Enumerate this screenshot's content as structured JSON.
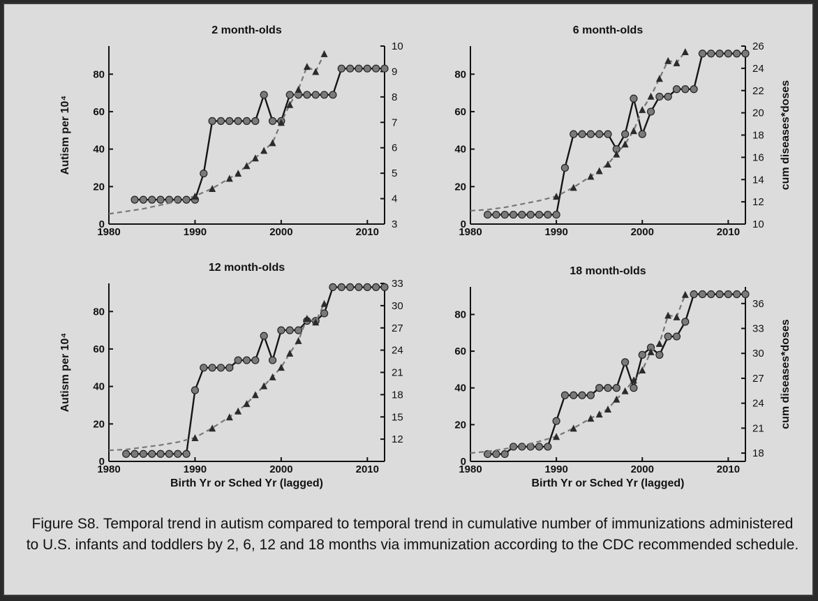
{
  "caption": "Figure S8. Temporal trend in autism compared to temporal trend in cumulative number of immunizations administered to U.S. infants and toddlers by 2, 6, 12 and 18 months via immunization according to the CDC recommended schedule.",
  "chart_data": [
    {
      "type": "line",
      "title": "2 month-olds",
      "xlabel": "",
      "ylabel": "Autism per 10⁴",
      "y2label": "",
      "xlim": [
        1980,
        2012
      ],
      "xticks": [
        1980,
        1990,
        2000,
        2010
      ],
      "ylim": [
        0,
        95
      ],
      "yticks": [
        0,
        20,
        40,
        60,
        80
      ],
      "y2lim": [
        3,
        10
      ],
      "y2ticks": [
        3,
        4,
        5,
        6,
        7,
        8,
        9,
        10
      ],
      "series": [
        {
          "role": "autism",
          "axis": "left",
          "style": "solid-circles",
          "color": "#7a7a7a",
          "x": [
            1983,
            1984,
            1985,
            1986,
            1987,
            1988,
            1989,
            1990,
            1991,
            1992,
            1993,
            1994,
            1995,
            1996,
            1997,
            1998,
            1999,
            2000,
            2001,
            2002,
            2003,
            2004,
            2005,
            2006,
            2007,
            2008,
            2009,
            2010,
            2011,
            2012
          ],
          "y": [
            13,
            13,
            13,
            13,
            13,
            13,
            13,
            13,
            27,
            55,
            55,
            55,
            55,
            55,
            55,
            69,
            55,
            55,
            69,
            69,
            69,
            69,
            69,
            69,
            83,
            83,
            83,
            83,
            83,
            83
          ]
        },
        {
          "role": "doses",
          "axis": "right",
          "style": "dashed-triangles",
          "color": "#777777",
          "x": [
            1980,
            1982,
            1984,
            1986,
            1988,
            1990,
            1992,
            1994,
            1995,
            1996,
            1997,
            1998,
            1999,
            2000,
            2001,
            2002,
            2003,
            2004,
            2005
          ],
          "y": [
            3.4,
            3.5,
            3.6,
            3.75,
            3.9,
            4.1,
            4.4,
            4.8,
            5.0,
            5.3,
            5.6,
            5.9,
            6.2,
            7.0,
            7.7,
            8.3,
            9.2,
            9.0,
            9.7
          ]
        }
      ]
    },
    {
      "type": "line",
      "title": "6 month-olds",
      "xlabel": "",
      "ylabel": "",
      "y2label": "cum diseases*doses",
      "xlim": [
        1980,
        2012
      ],
      "xticks": [
        1980,
        1990,
        2000,
        2010
      ],
      "ylim": [
        0,
        95
      ],
      "yticks": [
        0,
        20,
        40,
        60,
        80
      ],
      "y2lim": [
        10,
        26
      ],
      "y2ticks": [
        10,
        12,
        14,
        16,
        18,
        20,
        22,
        24,
        26
      ],
      "series": [
        {
          "role": "autism",
          "axis": "left",
          "style": "solid-circles",
          "color": "#7a7a7a",
          "x": [
            1982,
            1983,
            1984,
            1985,
            1986,
            1987,
            1988,
            1989,
            1990,
            1991,
            1992,
            1993,
            1994,
            1995,
            1996,
            1997,
            1998,
            1999,
            2000,
            2001,
            2002,
            2003,
            2004,
            2005,
            2006,
            2007,
            2008,
            2009,
            2010,
            2011,
            2012
          ],
          "y": [
            5,
            5,
            5,
            5,
            5,
            5,
            5,
            5,
            5,
            30,
            48,
            48,
            48,
            48,
            48,
            40,
            48,
            67,
            48,
            60,
            68,
            68,
            72,
            72,
            72,
            91,
            91,
            91,
            91,
            91,
            91
          ]
        },
        {
          "role": "doses",
          "axis": "right",
          "style": "dashed-triangles",
          "color": "#777777",
          "x": [
            1980,
            1982,
            1984,
            1986,
            1988,
            1990,
            1992,
            1994,
            1995,
            1996,
            1997,
            1998,
            1999,
            2000,
            2001,
            2002,
            2003,
            2004,
            2005
          ],
          "y": [
            11.2,
            11.3,
            11.5,
            11.8,
            12.1,
            12.5,
            13.3,
            14.3,
            14.8,
            15.4,
            16.3,
            17.2,
            18.4,
            20.3,
            21.5,
            23.1,
            24.7,
            24.5,
            25.5
          ]
        }
      ]
    },
    {
      "type": "line",
      "title": "12 month-olds",
      "xlabel": "Birth Yr or Sched Yr (lagged)",
      "ylabel": "Autism per 10⁴",
      "y2label": "",
      "xlim": [
        1980,
        2012
      ],
      "xticks": [
        1980,
        1990,
        2000,
        2010
      ],
      "ylim": [
        0,
        95
      ],
      "yticks": [
        0,
        20,
        40,
        60,
        80
      ],
      "y2lim": [
        9,
        33
      ],
      "y2ticks": [
        12,
        15,
        18,
        21,
        24,
        27,
        30,
        33
      ],
      "series": [
        {
          "role": "autism",
          "axis": "left",
          "style": "solid-circles",
          "color": "#7a7a7a",
          "x": [
            1982,
            1983,
            1984,
            1985,
            1986,
            1987,
            1988,
            1989,
            1990,
            1991,
            1992,
            1993,
            1994,
            1995,
            1996,
            1997,
            1998,
            1999,
            2000,
            2001,
            2002,
            2003,
            2004,
            2005,
            2006,
            2007,
            2008,
            2009,
            2010,
            2011,
            2012
          ],
          "y": [
            4,
            4,
            4,
            4,
            4,
            4,
            4,
            4,
            38,
            50,
            50,
            50,
            50,
            54,
            54,
            54,
            67,
            54,
            70,
            70,
            70,
            75,
            75,
            79,
            93,
            93,
            93,
            93,
            93,
            93,
            93
          ]
        },
        {
          "role": "doses",
          "axis": "right",
          "style": "dashed-triangles",
          "color": "#777777",
          "x": [
            1980,
            1982,
            1984,
            1986,
            1988,
            1990,
            1992,
            1994,
            1995,
            1996,
            1997,
            1998,
            1999,
            2000,
            2001,
            2002,
            2003,
            2004,
            2005
          ],
          "y": [
            10.5,
            10.6,
            10.9,
            11.2,
            11.6,
            12.2,
            13.5,
            15.0,
            15.8,
            16.8,
            18.0,
            19.2,
            20.4,
            21.7,
            23.6,
            25.3,
            28.3,
            27.8,
            30.3
          ]
        }
      ]
    },
    {
      "type": "line",
      "title": "18 month-olds",
      "xlabel": "Birth Yr or Sched Yr (lagged)",
      "ylabel": "",
      "y2label": "cum diseases*doses",
      "xlim": [
        1980,
        2012
      ],
      "xticks": [
        1980,
        1990,
        2000,
        2010
      ],
      "ylim": [
        0,
        95
      ],
      "yticks": [
        0,
        20,
        40,
        60,
        80
      ],
      "y2lim": [
        17,
        38
      ],
      "y2ticks": [
        18,
        21,
        24,
        27,
        30,
        33,
        36
      ],
      "series": [
        {
          "role": "autism",
          "axis": "left",
          "style": "solid-circles",
          "color": "#7a7a7a",
          "x": [
            1982,
            1983,
            1984,
            1985,
            1986,
            1987,
            1988,
            1989,
            1990,
            1991,
            1992,
            1993,
            1994,
            1995,
            1996,
            1997,
            1998,
            1999,
            2000,
            2001,
            2002,
            2003,
            2004,
            2005,
            2006,
            2007,
            2008,
            2009,
            2010,
            2011,
            2012
          ],
          "y": [
            4,
            4,
            4,
            8,
            8,
            8,
            8,
            8,
            22,
            36,
            36,
            36,
            36,
            40,
            40,
            40,
            54,
            40,
            58,
            62,
            58,
            68,
            68,
            76,
            91,
            91,
            91,
            91,
            91,
            91,
            91
          ]
        },
        {
          "role": "doses",
          "axis": "right",
          "style": "dashed-triangles",
          "color": "#777777",
          "x": [
            1980,
            1982,
            1984,
            1986,
            1988,
            1990,
            1992,
            1994,
            1995,
            1996,
            1997,
            1998,
            1999,
            2000,
            2001,
            2002,
            2003,
            2004,
            2005
          ],
          "y": [
            18.0,
            18.2,
            18.5,
            18.9,
            19.4,
            20.0,
            21.0,
            22.2,
            22.7,
            23.3,
            24.5,
            25.5,
            26.8,
            28.0,
            30.2,
            31.2,
            34.6,
            34.4,
            37.1
          ]
        }
      ]
    }
  ]
}
